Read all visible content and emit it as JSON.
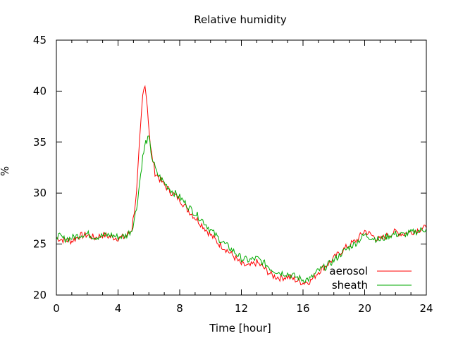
{
  "chart_data": {
    "type": "line",
    "title": "Relative humidity",
    "xlabel": "Time [hour]",
    "ylabel": "%",
    "xlim": [
      0,
      24
    ],
    "ylim": [
      20,
      45
    ],
    "xticks": [
      0,
      4,
      8,
      12,
      16,
      20,
      24
    ],
    "yticks": [
      20,
      25,
      30,
      35,
      40,
      45
    ],
    "grid": false,
    "legend_position": "bottom-right",
    "series": [
      {
        "name": "aerosol",
        "color": "#ff0000",
        "x": [
          0,
          0.5,
          1,
          1.5,
          2,
          2.5,
          3,
          3.5,
          4,
          4.5,
          4.9,
          5.2,
          5.4,
          5.6,
          5.75,
          5.9,
          6.1,
          6.4,
          7,
          7.5,
          8,
          8.5,
          9,
          9.5,
          10,
          10.5,
          11,
          11.5,
          12,
          12.5,
          13,
          13.5,
          14,
          14.5,
          15,
          15.5,
          16,
          16.5,
          17,
          17.5,
          18,
          18.5,
          19,
          19.5,
          20,
          20.5,
          21,
          21.5,
          22,
          22.5,
          23,
          23.5,
          24
        ],
        "y": [
          25.6,
          25.4,
          25.3,
          25.8,
          25.9,
          25.6,
          25.9,
          25.7,
          25.6,
          25.7,
          26.5,
          30.0,
          35.0,
          39.5,
          40.8,
          38.5,
          34.5,
          32.0,
          30.8,
          30.0,
          29.4,
          28.4,
          27.6,
          26.8,
          25.9,
          25.1,
          24.5,
          23.8,
          23.0,
          22.8,
          23.2,
          22.6,
          21.9,
          21.7,
          21.8,
          21.5,
          21.2,
          21.4,
          22.3,
          22.9,
          23.6,
          24.3,
          24.9,
          25.4,
          26.3,
          25.8,
          25.4,
          25.9,
          26.2,
          26.0,
          26.2,
          26.4,
          26.6
        ]
      },
      {
        "name": "sheath",
        "color": "#00aa00",
        "x": [
          0,
          0.5,
          1,
          1.5,
          2,
          2.5,
          3,
          3.5,
          4,
          4.5,
          4.9,
          5.2,
          5.4,
          5.6,
          5.8,
          6.0,
          6.2,
          6.5,
          7,
          7.5,
          8,
          8.5,
          9,
          9.5,
          10,
          10.5,
          11,
          11.5,
          12,
          12.5,
          13,
          13.5,
          14,
          14.5,
          15,
          15.5,
          16,
          16.5,
          17,
          17.5,
          18,
          18.5,
          19,
          19.5,
          20,
          20.5,
          21,
          21.5,
          22,
          22.5,
          23,
          23.5,
          24
        ],
        "y": [
          25.9,
          25.5,
          25.6,
          25.9,
          26.0,
          25.7,
          25.8,
          25.9,
          25.7,
          25.8,
          26.4,
          28.5,
          31.0,
          33.5,
          35.0,
          35.4,
          33.5,
          32.0,
          31.0,
          30.2,
          29.6,
          28.8,
          28.0,
          27.3,
          26.4,
          25.6,
          24.9,
          24.3,
          23.6,
          23.4,
          23.6,
          23.1,
          22.5,
          22.2,
          22.1,
          21.8,
          21.5,
          21.6,
          22.4,
          22.8,
          23.4,
          24.1,
          24.7,
          25.2,
          25.9,
          25.6,
          25.4,
          25.8,
          26.0,
          25.9,
          26.1,
          26.3,
          26.5
        ]
      }
    ]
  }
}
